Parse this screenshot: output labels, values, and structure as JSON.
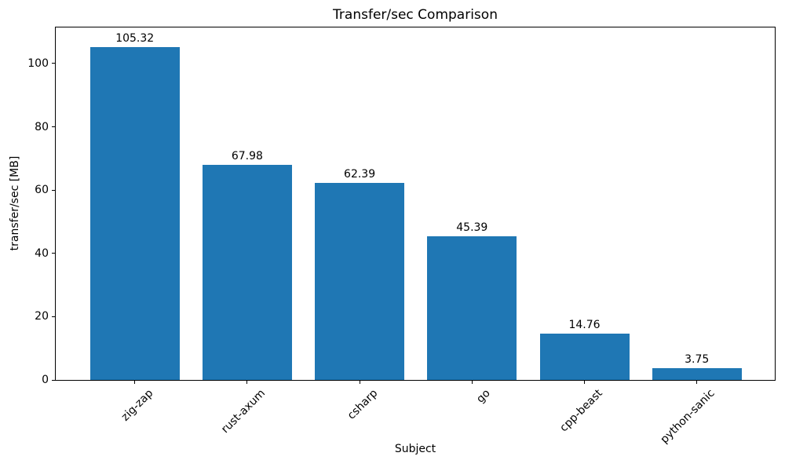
{
  "chart_data": {
    "type": "bar",
    "title": "Transfer/sec Comparison",
    "xlabel": "Subject",
    "ylabel": "transfer/sec [MB]",
    "categories": [
      "zig-zap",
      "rust-axum",
      "csharp",
      "go",
      "cpp-beast",
      "python-sanic"
    ],
    "values": [
      105.32,
      67.98,
      62.39,
      45.39,
      14.76,
      3.75
    ],
    "value_labels": [
      "105.32",
      "67.98",
      "62.39",
      "45.39",
      "14.76",
      "3.75"
    ],
    "y_ticks": [
      0,
      20,
      40,
      60,
      80,
      100
    ],
    "ylim": [
      0,
      111.4
    ],
    "x_tick_rotation": 45,
    "grid": false,
    "legend": null,
    "bar_color": "#1f77b4",
    "text_color": "#000000",
    "background_color": "#ffffff"
  }
}
